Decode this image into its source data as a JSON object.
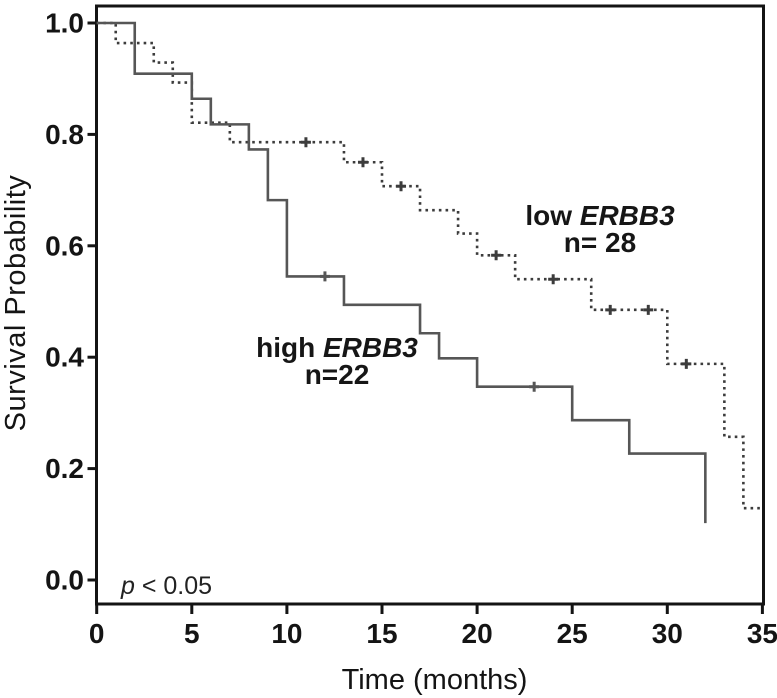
{
  "chart_data": {
    "type": "line",
    "subtype": "kaplan_meier_step_plot",
    "title": "",
    "xlabel": "Time (months)",
    "ylabel": "Survival Probability",
    "xlim": [
      0,
      35
    ],
    "ylim": [
      0.0,
      1.0
    ],
    "grid": false,
    "legend_position": "annotations-inline",
    "x_ticks": [
      {
        "label": "0",
        "value": 0
      },
      {
        "label": "5",
        "value": 5
      },
      {
        "label": "10",
        "value": 10
      },
      {
        "label": "15",
        "value": 15
      },
      {
        "label": "20",
        "value": 20
      },
      {
        "label": "25",
        "value": 25
      },
      {
        "label": "30",
        "value": 30
      },
      {
        "label": "35",
        "value": 35
      }
    ],
    "y_ticks": [
      {
        "label": "0.0",
        "value": 0.0
      },
      {
        "label": "0.2",
        "value": 0.2
      },
      {
        "label": "0.4",
        "value": 0.4
      },
      {
        "label": "0.6",
        "value": 0.6
      },
      {
        "label": "0.8",
        "value": 0.8
      },
      {
        "label": "1.0",
        "value": 1.0
      }
    ],
    "series": [
      {
        "name": "low ERBB3",
        "n": 28,
        "line_style": "dotted",
        "color": "#3c3c3c",
        "start": [
          0,
          1.0
        ],
        "steps": [
          [
            1,
            0.964
          ],
          [
            3,
            0.929
          ],
          [
            4,
            0.893
          ],
          [
            5,
            0.821
          ],
          [
            7,
            0.786
          ],
          [
            13,
            0.75
          ],
          [
            15,
            0.707
          ],
          [
            17,
            0.664
          ],
          [
            19,
            0.622
          ],
          [
            20,
            0.583
          ],
          [
            22,
            0.54
          ],
          [
            26,
            0.485
          ],
          [
            30,
            0.388
          ],
          [
            33,
            0.257
          ],
          [
            34,
            0.129
          ]
        ],
        "end_time": 35,
        "censor_marks": [
          [
            11,
            0.786
          ],
          [
            14,
            0.75
          ],
          [
            16,
            0.707
          ],
          [
            21,
            0.583
          ],
          [
            24,
            0.54
          ],
          [
            27,
            0.485
          ],
          [
            29,
            0.485
          ],
          [
            31,
            0.388
          ]
        ]
      },
      {
        "name": "high ERBB3",
        "n": 22,
        "line_style": "solid",
        "color": "#565656",
        "start": [
          0,
          1.0
        ],
        "steps": [
          [
            2,
            0.909
          ],
          [
            5,
            0.864
          ],
          [
            6,
            0.818
          ],
          [
            8,
            0.773
          ],
          [
            9,
            0.682
          ],
          [
            10,
            0.545
          ],
          [
            13,
            0.494
          ],
          [
            17,
            0.443
          ],
          [
            18,
            0.398
          ],
          [
            20,
            0.347
          ],
          [
            25,
            0.287
          ],
          [
            28,
            0.227
          ],
          [
            32,
            0.102
          ]
        ],
        "end_time": 32,
        "censor_marks": [
          [
            12,
            0.545
          ],
          [
            23,
            0.347
          ]
        ]
      }
    ],
    "annotations": {
      "low": {
        "prefix": "low ",
        "gene": "ERBB3",
        "count": "n= 28"
      },
      "high": {
        "prefix": "high ",
        "gene": "ERBB3",
        "count": "n=22"
      },
      "p_value": {
        "symbol": "p",
        "text": " < 0.05"
      }
    },
    "colors": {
      "axis": "#141414",
      "text": "#141414",
      "background": "#ffffff"
    }
  }
}
